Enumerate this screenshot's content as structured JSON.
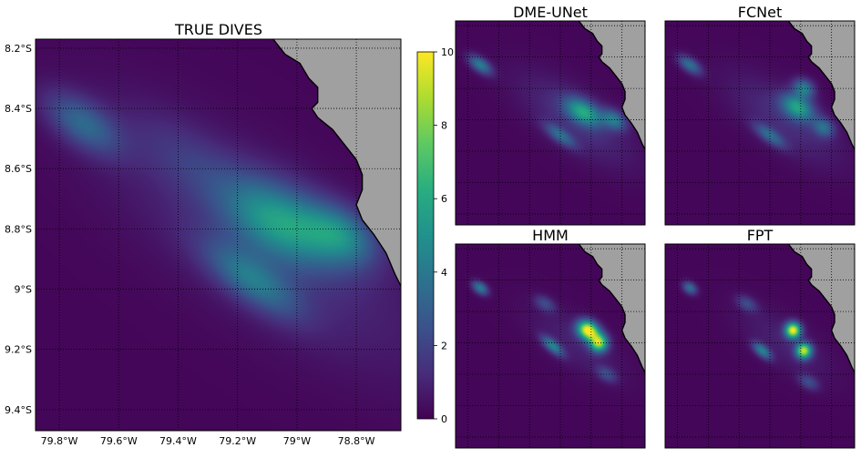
{
  "chart_data": [
    {
      "type": "heatmap",
      "title": "TRUE DIVES",
      "xlabel": "",
      "ylabel": "",
      "x_tick_labels": [
        "79.8°W",
        "79.6°W",
        "79.4°W",
        "79.2°W",
        "79°W",
        "78.8°W"
      ],
      "y_tick_labels": [
        "8.2°S",
        "8.4°S",
        "8.6°S",
        "8.8°S",
        "9°S",
        "9.2°S",
        "9.4°S"
      ],
      "x_ticks": [
        -79.8,
        -79.6,
        -79.4,
        -79.2,
        -79.0,
        -78.8
      ],
      "y_ticks": [
        -8.2,
        -8.4,
        -8.6,
        -8.8,
        -9.0,
        -9.2,
        -9.4
      ],
      "xlim": [
        -79.88,
        -78.65
      ],
      "ylim": [
        -9.47,
        -8.17
      ],
      "grid": true,
      "colormap": "viridis",
      "value_range": [
        0,
        10
      ],
      "land_color": "#a0a0a0",
      "blobs": [
        {
          "lon": -79.72,
          "lat": -8.45,
          "sx": 0.1,
          "sy": 0.05,
          "rot": -35,
          "amp": 3.0
        },
        {
          "lon": -79.35,
          "lat": -8.58,
          "sx": 0.18,
          "sy": 0.07,
          "rot": -35,
          "amp": 1.0
        },
        {
          "lon": -79.05,
          "lat": -8.78,
          "sx": 0.14,
          "sy": 0.08,
          "rot": -30,
          "amp": 4.5
        },
        {
          "lon": -78.85,
          "lat": -8.82,
          "sx": 0.09,
          "sy": 0.06,
          "rot": -30,
          "amp": 3.5
        },
        {
          "lon": -79.15,
          "lat": -8.97,
          "sx": 0.13,
          "sy": 0.05,
          "rot": -35,
          "amp": 3.2
        },
        {
          "lon": -79.1,
          "lat": -8.85,
          "sx": 0.45,
          "sy": 0.16,
          "rot": -35,
          "amp": 1.2
        }
      ]
    },
    {
      "type": "heatmap",
      "title": "DME-UNet",
      "colormap": "viridis",
      "value_range": [
        0,
        10
      ],
      "blobs": [
        {
          "lon": -79.72,
          "lat": -8.45,
          "sx": 0.06,
          "sy": 0.03,
          "rot": -35,
          "amp": 4.0
        },
        {
          "lon": -79.05,
          "lat": -8.75,
          "sx": 0.09,
          "sy": 0.05,
          "rot": -30,
          "amp": 5.0
        },
        {
          "lon": -78.85,
          "lat": -8.8,
          "sx": 0.06,
          "sy": 0.04,
          "rot": -30,
          "amp": 3.5
        },
        {
          "lon": -79.2,
          "lat": -8.9,
          "sx": 0.08,
          "sy": 0.03,
          "rot": -35,
          "amp": 3.0
        },
        {
          "lon": -79.1,
          "lat": -8.8,
          "sx": 0.3,
          "sy": 0.12,
          "rot": -35,
          "amp": 1.3
        }
      ]
    },
    {
      "type": "heatmap",
      "title": "FCNet",
      "colormap": "viridis",
      "value_range": [
        0,
        10
      ],
      "blobs": [
        {
          "lon": -79.72,
          "lat": -8.45,
          "sx": 0.06,
          "sy": 0.03,
          "rot": -35,
          "amp": 3.5
        },
        {
          "lon": -79.02,
          "lat": -8.72,
          "sx": 0.08,
          "sy": 0.05,
          "rot": -30,
          "amp": 5.0
        },
        {
          "lon": -78.98,
          "lat": -8.6,
          "sx": 0.05,
          "sy": 0.04,
          "rot": -30,
          "amp": 4.0
        },
        {
          "lon": -78.85,
          "lat": -8.85,
          "sx": 0.05,
          "sy": 0.04,
          "rot": -30,
          "amp": 3.0
        },
        {
          "lon": -79.2,
          "lat": -8.9,
          "sx": 0.08,
          "sy": 0.03,
          "rot": -35,
          "amp": 3.0
        },
        {
          "lon": -79.1,
          "lat": -8.8,
          "sx": 0.3,
          "sy": 0.12,
          "rot": -35,
          "amp": 1.2
        }
      ]
    },
    {
      "type": "heatmap",
      "title": "HMM",
      "colormap": "viridis",
      "value_range": [
        0,
        10
      ],
      "blobs": [
        {
          "lon": -79.72,
          "lat": -8.45,
          "sx": 0.04,
          "sy": 0.025,
          "rot": -35,
          "amp": 4.0
        },
        {
          "lon": -79.02,
          "lat": -8.72,
          "sx": 0.05,
          "sy": 0.04,
          "rot": -30,
          "amp": 10.0
        },
        {
          "lon": -78.95,
          "lat": -8.8,
          "sx": 0.04,
          "sy": 0.04,
          "rot": -30,
          "amp": 8.0
        },
        {
          "lon": -79.25,
          "lat": -8.82,
          "sx": 0.06,
          "sy": 0.025,
          "rot": -40,
          "amp": 4.0
        },
        {
          "lon": -79.3,
          "lat": -8.55,
          "sx": 0.05,
          "sy": 0.03,
          "rot": -30,
          "amp": 2.0
        },
        {
          "lon": -78.9,
          "lat": -9.0,
          "sx": 0.05,
          "sy": 0.03,
          "rot": -30,
          "amp": 2.0
        },
        {
          "lon": -79.1,
          "lat": -8.8,
          "sx": 0.25,
          "sy": 0.1,
          "rot": -35,
          "amp": 0.8
        }
      ]
    },
    {
      "type": "heatmap",
      "title": "FPT",
      "colormap": "viridis",
      "value_range": [
        0,
        10
      ],
      "blobs": [
        {
          "lon": -79.72,
          "lat": -8.45,
          "sx": 0.035,
          "sy": 0.025,
          "rot": -35,
          "amp": 3.5
        },
        {
          "lon": -79.05,
          "lat": -8.72,
          "sx": 0.035,
          "sy": 0.035,
          "rot": -30,
          "amp": 9.5
        },
        {
          "lon": -78.98,
          "lat": -8.85,
          "sx": 0.035,
          "sy": 0.035,
          "rot": -30,
          "amp": 8.5
        },
        {
          "lon": -79.25,
          "lat": -8.85,
          "sx": 0.05,
          "sy": 0.025,
          "rot": -40,
          "amp": 4.0
        },
        {
          "lon": -79.35,
          "lat": -8.55,
          "sx": 0.05,
          "sy": 0.03,
          "rot": -30,
          "amp": 2.0
        },
        {
          "lon": -78.95,
          "lat": -9.05,
          "sx": 0.05,
          "sy": 0.03,
          "rot": -30,
          "amp": 2.0
        },
        {
          "lon": -79.1,
          "lat": -8.8,
          "sx": 0.25,
          "sy": 0.1,
          "rot": -35,
          "amp": 0.8
        }
      ]
    }
  ],
  "colorbar": {
    "colormap": "viridis",
    "min": 0,
    "max": 10,
    "ticks": [
      0,
      2,
      4,
      6,
      8,
      10
    ],
    "tick_labels": [
      "0",
      "2",
      "4",
      "6",
      "8",
      "10"
    ]
  },
  "coastline": [
    [
      -79.08,
      -8.17
    ],
    [
      -79.04,
      -8.22
    ],
    [
      -78.99,
      -8.25
    ],
    [
      -78.96,
      -8.3
    ],
    [
      -78.93,
      -8.33
    ],
    [
      -78.93,
      -8.38
    ],
    [
      -78.95,
      -8.4
    ],
    [
      -78.93,
      -8.43
    ],
    [
      -78.88,
      -8.47
    ],
    [
      -78.84,
      -8.52
    ],
    [
      -78.8,
      -8.57
    ],
    [
      -78.78,
      -8.62
    ],
    [
      -78.78,
      -8.67
    ],
    [
      -78.8,
      -8.72
    ],
    [
      -78.78,
      -8.77
    ],
    [
      -78.74,
      -8.82
    ],
    [
      -78.7,
      -8.88
    ],
    [
      -78.67,
      -8.95
    ],
    [
      -78.65,
      -8.99
    ]
  ]
}
